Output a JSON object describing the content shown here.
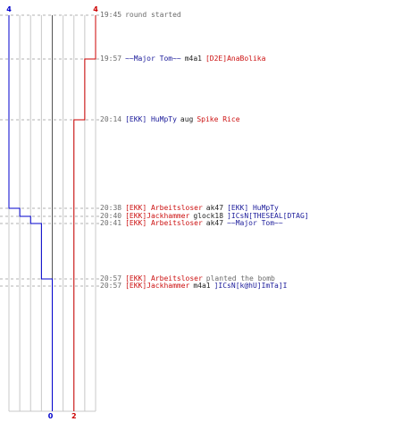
{
  "chart_data": {
    "type": "line",
    "title": "",
    "xlabel": "",
    "ylabel": "",
    "series": [
      {
        "team": "blue",
        "color": "#0000cc",
        "start_value": 4,
        "steps": [
          {
            "time": "20:38",
            "value": 3
          },
          {
            "time": "20:40",
            "value": 2
          },
          {
            "time": "20:41",
            "value": 1
          },
          {
            "time": "20:57",
            "value": 0
          }
        ],
        "end_value": 0
      },
      {
        "team": "red",
        "color": "#cc0000",
        "start_value": 4,
        "steps": [
          {
            "time": "19:57",
            "value": 3
          },
          {
            "time": "20:14",
            "value": 2
          }
        ],
        "end_value": 2
      }
    ],
    "top_labels": {
      "left": "4",
      "right": "4"
    },
    "bottom_labels": {
      "left": "0",
      "right": "2"
    },
    "grid": true
  },
  "events": [
    {
      "time": "19:45",
      "parts": [
        {
          "text": "round started",
          "style": "gray"
        }
      ]
    },
    {
      "time": "19:57",
      "parts": [
        {
          "text": "~~Major Tom~~",
          "style": "blue"
        },
        {
          "text": "m4a1",
          "style": "black"
        },
        {
          "text": "[D2E]AnaBolika",
          "style": "red"
        }
      ]
    },
    {
      "time": "20:14",
      "parts": [
        {
          "text": "[EKK] HuMpTy",
          "style": "blue"
        },
        {
          "text": "aug",
          "style": "black"
        },
        {
          "text": "Spike Rice",
          "style": "red"
        }
      ]
    },
    {
      "time": "20:38",
      "parts": [
        {
          "text": "[EKK] Arbeitsloser",
          "style": "red"
        },
        {
          "text": "ak47",
          "style": "black"
        },
        {
          "text": "[EKK] HuMpTy",
          "style": "blue"
        }
      ]
    },
    {
      "time": "20:40",
      "parts": [
        {
          "text": "[EKK]Jackhammer",
          "style": "red"
        },
        {
          "text": "glock18",
          "style": "black"
        },
        {
          "text": "]ICsN[THESEAL[DTAG]",
          "style": "blue"
        }
      ]
    },
    {
      "time": "20:41",
      "parts": [
        {
          "text": "[EKK] Arbeitsloser",
          "style": "red"
        },
        {
          "text": "ak47",
          "style": "black"
        },
        {
          "text": "~~Major Tom~~",
          "style": "blue"
        }
      ]
    },
    {
      "time": "20:57",
      "parts": [
        {
          "text": "[EKK] Arbeitsloser",
          "style": "red"
        },
        {
          "text": "planted the bomb",
          "style": "gray"
        }
      ]
    },
    {
      "time": "20:57",
      "parts": [
        {
          "text": "[EKK]Jackhammer",
          "style": "red"
        },
        {
          "text": "m4a1",
          "style": "black"
        },
        {
          "text": "]ICsN[k@hU]ImTa]I",
          "style": "blue"
        }
      ]
    }
  ]
}
